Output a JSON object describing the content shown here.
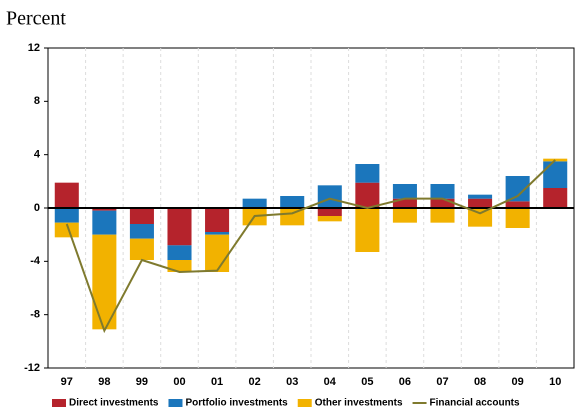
{
  "chart_data": {
    "type": "bar",
    "title": "Percent",
    "categories": [
      "97",
      "98",
      "99",
      "00",
      "01",
      "02",
      "03",
      "04",
      "05",
      "06",
      "07",
      "08",
      "09",
      "10"
    ],
    "ylim": [
      -12,
      12
    ],
    "yticks": [
      -12,
      -8,
      -4,
      0,
      4,
      8,
      12
    ],
    "series": [
      {
        "name": "Direct investments",
        "color": "#b5232c",
        "type": "bar",
        "values": [
          1.9,
          -0.2,
          -1.2,
          -2.8,
          -1.8,
          0,
          0,
          -0.6,
          1.9,
          0.7,
          0.7,
          0.7,
          0.5,
          1.5
        ]
      },
      {
        "name": "Portfolio investments",
        "color": "#1b76bc",
        "type": "bar",
        "values": [
          -1.1,
          -1.8,
          -1.1,
          -1.1,
          -0.2,
          0.7,
          0.9,
          1.7,
          1.4,
          1.1,
          1.1,
          0.3,
          1.9,
          2.0
        ]
      },
      {
        "name": "Other investments",
        "color": "#f2b200",
        "type": "bar",
        "values": [
          -1.1,
          -7.1,
          -1.6,
          -0.9,
          -2.8,
          -1.3,
          -1.3,
          -0.4,
          -3.3,
          -1.1,
          -1.1,
          -1.4,
          -1.5,
          0.2
        ]
      },
      {
        "name": "Financial accounts",
        "color": "#7f7a2e",
        "type": "line",
        "values": [
          -1.2,
          -9.2,
          -3.9,
          -4.8,
          -4.7,
          -0.6,
          -0.4,
          0.7,
          0,
          0.7,
          0.7,
          -0.4,
          0.9,
          3.6
        ]
      }
    ]
  }
}
